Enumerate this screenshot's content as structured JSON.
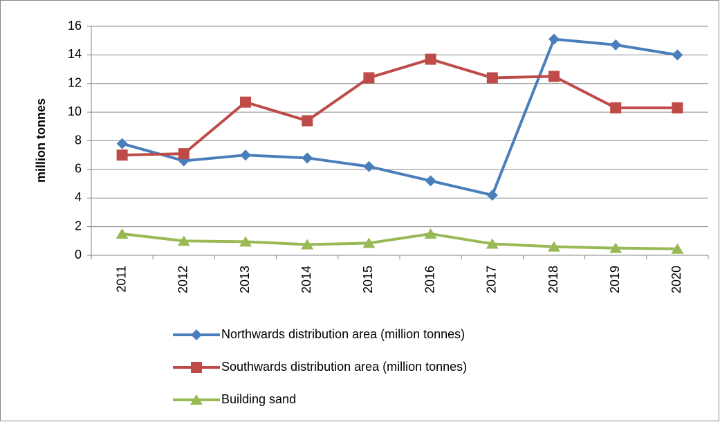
{
  "chart_data": {
    "type": "line",
    "y_label": "million tonnes",
    "categories": [
      "2011",
      "2012",
      "2013",
      "2014",
      "2015",
      "2016",
      "2017",
      "2018",
      "2019",
      "2020"
    ],
    "series": [
      {
        "name": "Northwards distribution area (million tonnes)",
        "color": "#4a7ebb",
        "marker": "diamond",
        "values": [
          7.8,
          6.6,
          7.0,
          6.8,
          6.2,
          5.2,
          4.2,
          15.1,
          14.7,
          14.0
        ]
      },
      {
        "name": "Southwards distribution area (million tonnes)",
        "color": "#be4b48",
        "marker": "square",
        "values": [
          7.0,
          7.1,
          10.7,
          9.4,
          12.4,
          13.7,
          12.4,
          12.5,
          10.3,
          10.3
        ]
      },
      {
        "name": "Building sand",
        "color": "#98b954",
        "marker": "triangle",
        "values": [
          1.5,
          1.0,
          0.95,
          0.75,
          0.85,
          1.5,
          0.8,
          0.6,
          0.5,
          0.45
        ]
      }
    ],
    "ylim": [
      0,
      16
    ],
    "yticks": [
      0,
      2,
      4,
      6,
      8,
      10,
      12,
      14,
      16
    ],
    "grid": true,
    "legend": "bottom"
  }
}
